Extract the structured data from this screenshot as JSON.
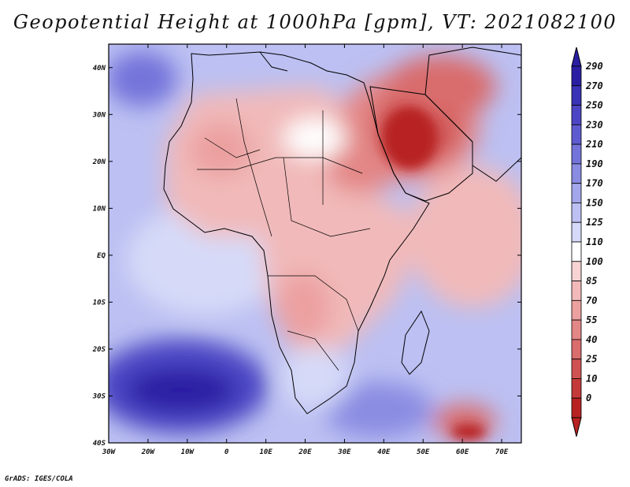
{
  "title": "Geopotential Height at 1000hPa [gpm], VT: 2021082100",
  "footer": "GrADS: IGES/COLA",
  "map": {
    "lon_ticks": [
      "30W",
      "20W",
      "10W",
      "0",
      "10E",
      "20E",
      "30E",
      "40E",
      "50E",
      "60E",
      "70E"
    ],
    "lat_ticks": [
      "40N",
      "30N",
      "20N",
      "10N",
      "EQ",
      "10S",
      "20S",
      "30S",
      "40S"
    ]
  },
  "colorbar": {
    "labels": [
      "290",
      "270",
      "250",
      "230",
      "210",
      "190",
      "170",
      "150",
      "125",
      "110",
      "100",
      "85",
      "70",
      "55",
      "40",
      "25",
      "10",
      "0"
    ],
    "colors": [
      "#2a1fa3",
      "#3a33b5",
      "#4c46c4",
      "#5e5bd0",
      "#7373da",
      "#8a8ce2",
      "#a3a6ea",
      "#bcc0f2",
      "#d6daf8",
      "#ffffff",
      "#f7d3d3",
      "#f1b9b9",
      "#eca0a0",
      "#e38686",
      "#d96c6c",
      "#cf5252",
      "#c43a3a",
      "#b82222"
    ]
  },
  "chart_data": {
    "type": "heatmap",
    "title": "Geopotential Height at 1000hPa [gpm], VT: 2021082100",
    "variable": "Geopotential Height at 1000hPa",
    "units": "gpm",
    "valid_time": "2021082100",
    "lon_range": [
      -30,
      75
    ],
    "lat_range": [
      -40,
      45
    ],
    "contour_levels": [
      0,
      10,
      25,
      40,
      55,
      70,
      85,
      100,
      110,
      125,
      150,
      170,
      190,
      210,
      230,
      250,
      270,
      290
    ],
    "xlabel": "",
    "ylabel": ""
  }
}
